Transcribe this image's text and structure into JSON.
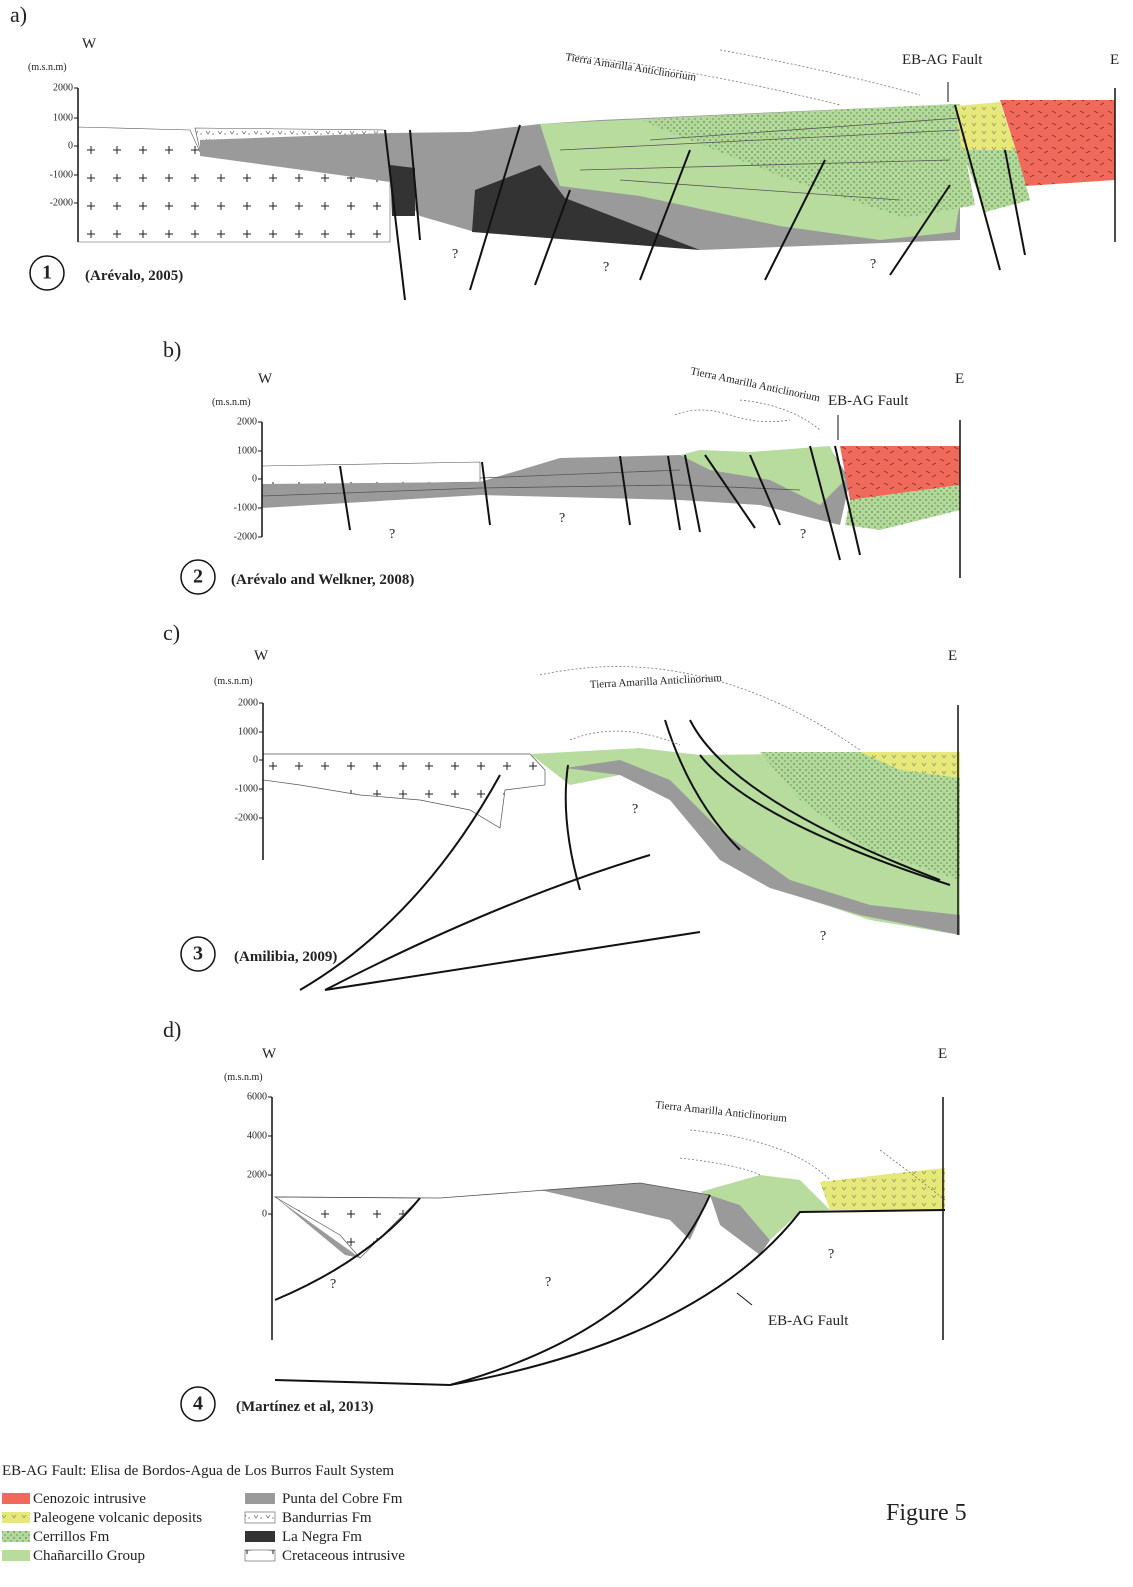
{
  "panels": [
    {
      "label": "a)",
      "west": "W",
      "east": "E",
      "unit": "(m.s.n.m)",
      "ticks": [
        2000,
        1000,
        0,
        -1000,
        -2000
      ],
      "anticlinorium": "Tierra Amarilla Anticlinorium",
      "fault": "EB-AG Fault",
      "number": 1,
      "source": "(Arévalo, 2005)",
      "unknowns": [
        "?",
        "?",
        "?"
      ]
    },
    {
      "label": "b)",
      "west": "W",
      "east": "E",
      "unit": "(m.s.n.m)",
      "ticks": [
        2000,
        1000,
        0,
        -1000,
        -2000
      ],
      "anticlinorium": "Tierra Amarilla Anticlinorium",
      "fault": "EB-AG Fault",
      "number": 2,
      "source": "(Arévalo and Welkner, 2008)",
      "unknowns": [
        "?",
        "?",
        "?"
      ]
    },
    {
      "label": "c)",
      "west": "W",
      "east": "E",
      "unit": "(m.s.n.m)",
      "ticks": [
        2000,
        1000,
        0,
        -1000,
        -2000
      ],
      "anticlinorium": "Tierra Amarilla Anticlinorium",
      "number": 3,
      "source": "(Amilibia, 2009)",
      "unknowns": [
        "?",
        "?"
      ]
    },
    {
      "label": "d)",
      "west": "W",
      "east": "E",
      "unit": "(m.s.n.m)",
      "ticks": [
        6000,
        4000,
        2000,
        0
      ],
      "anticlinorium": "Tierra Amarilla Anticlinorium",
      "fault": "EB-AG Fault",
      "number": 4,
      "source": "(Martínez et al, 2013)",
      "unknowns": [
        "?",
        "?",
        "?"
      ]
    }
  ],
  "legend": {
    "note": "EB-AG Fault: Elisa de Bordos-Agua de Los Burros Fault System",
    "items": [
      "Cenozoic intrusive",
      "Paleogene volcanic deposits",
      "Cerrillos Fm",
      "Chañarcillo Group",
      "Punta del Cobre Fm",
      "Bandurrias Fm",
      "La Negra Fm",
      "Cretaceous intrusive"
    ]
  },
  "figure": "Figure 5"
}
